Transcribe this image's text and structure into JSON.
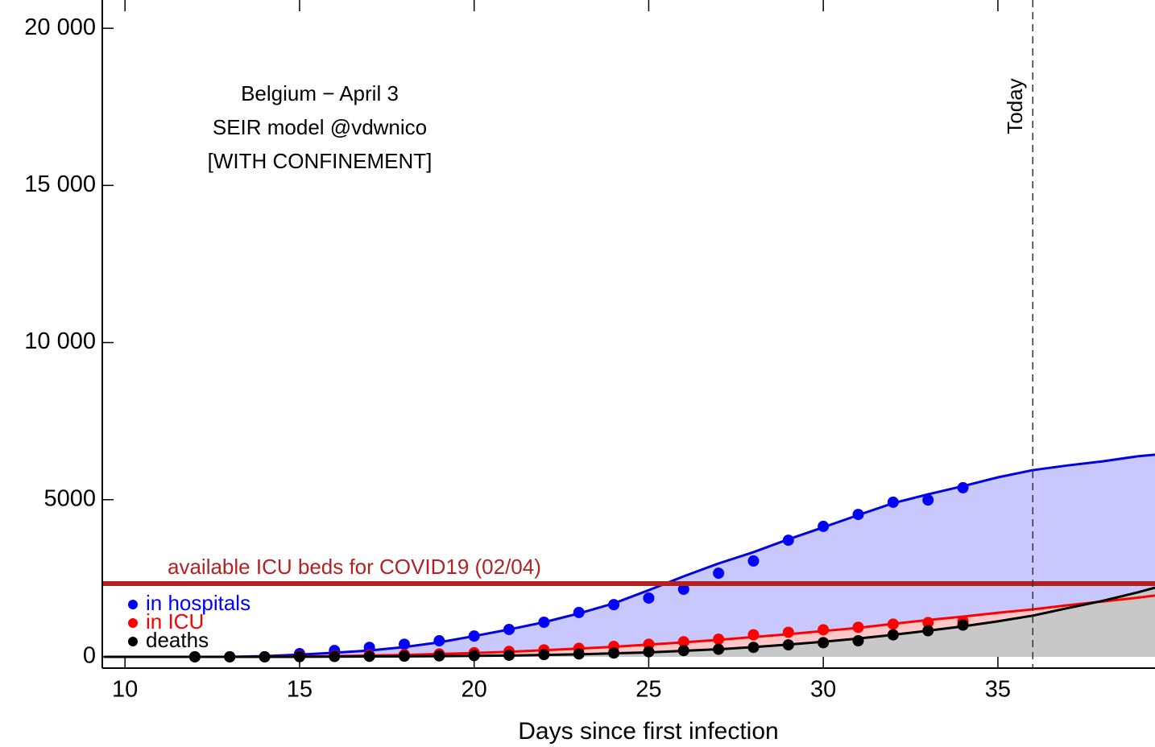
{
  "chart_data": {
    "type": "line",
    "annotation": [
      "Belgium − April 3",
      "SEIR model @vdwnico",
      "[WITH CONFINEMENT]"
    ],
    "x_label": "Days since first infection",
    "xlim": [
      9.35,
      39.5
    ],
    "xticks": [
      10,
      15,
      20,
      25,
      30,
      35
    ],
    "ylim": [
      -360,
      20900
    ],
    "yticks": [
      {
        "value": 0,
        "label": "0"
      },
      {
        "value": 5000,
        "label": "5000"
      },
      {
        "value": 10000,
        "label": "10 000"
      },
      {
        "value": 15000,
        "label": "15 000"
      },
      {
        "value": 20000,
        "label": "20 000"
      }
    ],
    "legend": "lower left",
    "series": [
      {
        "name": "in hospitals",
        "color": "#0000ff",
        "x": [
          12,
          13,
          14,
          15,
          16,
          17,
          18,
          19,
          20,
          21,
          22,
          23,
          24,
          25,
          26,
          27,
          28,
          29,
          30,
          31,
          32,
          33,
          34
        ],
        "values": [
          0,
          0,
          0,
          100,
          200,
          300,
          400,
          510,
          660,
          870,
          1100,
          1410,
          1660,
          1870,
          2150,
          2660,
          3050,
          3710,
          4150,
          4530,
          4920,
          4990,
          5380
        ]
      },
      {
        "name": "in ICU",
        "color": "#ff0000",
        "x": [
          12,
          13,
          14,
          15,
          16,
          17,
          18,
          19,
          20,
          21,
          22,
          23,
          24,
          25,
          26,
          27,
          28,
          29,
          30,
          31,
          32,
          33,
          34
        ],
        "values": [
          0,
          0,
          0,
          20,
          30,
          50,
          70,
          90,
          130,
          170,
          220,
          270,
          330,
          400,
          480,
          560,
          700,
          780,
          860,
          940,
          1040,
          1090,
          1130
        ]
      },
      {
        "name": "deaths",
        "color": "#000000",
        "x": [
          12,
          13,
          14,
          15,
          16,
          17,
          18,
          19,
          20,
          21,
          22,
          23,
          24,
          25,
          26,
          27,
          28,
          29,
          30,
          31,
          32,
          33,
          34
        ],
        "values": [
          0,
          0,
          0,
          5,
          10,
          15,
          20,
          30,
          40,
          50,
          70,
          90,
          120,
          160,
          200,
          240,
          300,
          380,
          450,
          510,
          700,
          830,
          1010
        ]
      }
    ],
    "model_x": [
      9.4,
      10,
      11,
      12,
      13,
      14,
      15,
      16,
      17,
      18,
      19,
      20,
      21,
      22,
      23,
      24,
      25,
      26,
      27,
      28,
      29,
      30,
      31,
      32,
      33,
      34,
      35,
      36,
      37,
      38,
      39,
      39.5
    ],
    "curves": [
      {
        "color": "#0000e0",
        "fill": "#c8c8ff",
        "values": [
          0,
          0,
          0,
          0,
          0,
          20,
          70,
          130,
          200,
          310,
          460,
          660,
          870,
          1100,
          1380,
          1700,
          2120,
          2560,
          2970,
          3330,
          3740,
          4120,
          4510,
          4890,
          5170,
          5430,
          5710,
          5940,
          6090,
          6220,
          6380,
          6430
        ]
      },
      {
        "color": "#ff0000",
        "fill": "#ffc8c8",
        "values": [
          0,
          0,
          0,
          0,
          0,
          0,
          10,
          20,
          40,
          60,
          90,
          120,
          160,
          210,
          260,
          320,
          390,
          460,
          540,
          630,
          720,
          820,
          920,
          1050,
          1170,
          1280,
          1400,
          1510,
          1640,
          1760,
          1880,
          1950
        ]
      },
      {
        "color": "#000000",
        "fill": "#c8c8c8",
        "values": [
          0,
          0,
          0,
          0,
          0,
          0,
          0,
          5,
          10,
          15,
          20,
          30,
          40,
          60,
          80,
          110,
          140,
          190,
          240,
          310,
          390,
          480,
          580,
          700,
          830,
          970,
          1130,
          1310,
          1550,
          1780,
          2050,
          2200
        ]
      }
    ],
    "hlines": [
      {
        "value": 2330,
        "label": "available ICU beds for COVID19 (02/04)",
        "color": "#b22222"
      }
    ],
    "vlines": [
      {
        "value": 36,
        "label": "Today"
      }
    ]
  }
}
